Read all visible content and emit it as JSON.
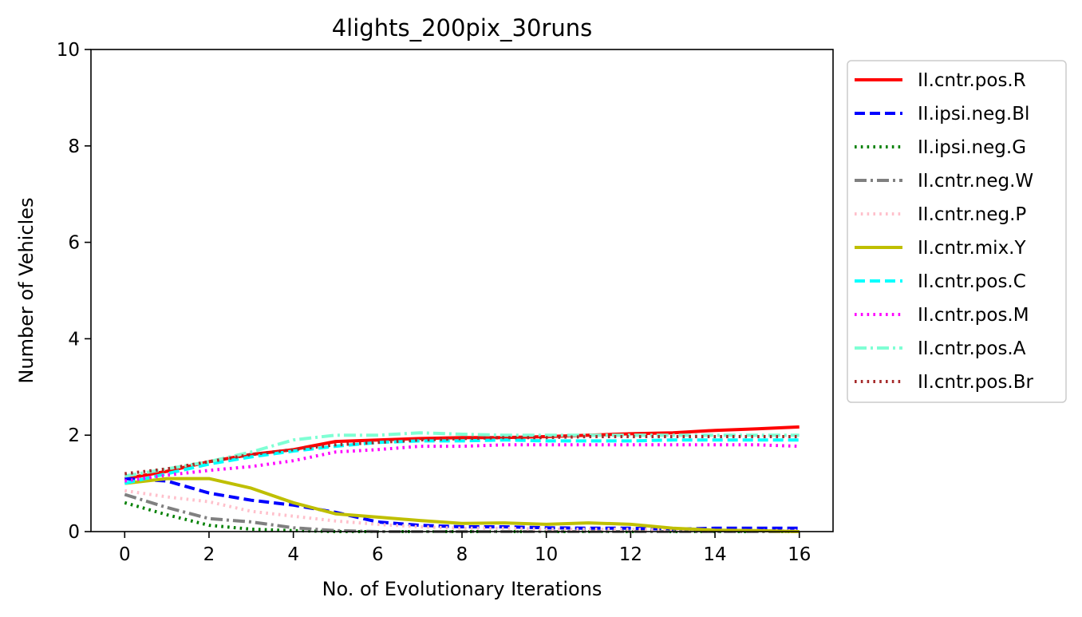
{
  "chart_data": {
    "type": "line",
    "title": "4lights_200pix_30runs",
    "xlabel": "No. of Evolutionary Iterations",
    "ylabel": "Number of Vehicles",
    "xlim": [
      -0.8,
      16.8
    ],
    "ylim": [
      0,
      10
    ],
    "xticks": [
      "0",
      "2",
      "4",
      "6",
      "8",
      "10",
      "12",
      "14",
      "16"
    ],
    "yticks": [
      "0",
      "2",
      "4",
      "6",
      "8",
      "10"
    ],
    "grid": false,
    "legend_position": "outside-right-top",
    "x": [
      0,
      1,
      2,
      3,
      4,
      5,
      6,
      7,
      8,
      9,
      10,
      11,
      12,
      13,
      14,
      15,
      16
    ],
    "series": [
      {
        "name": "II.cntr.pos.R",
        "color": "#ff0000",
        "style": "solid",
        "values": [
          1.1,
          1.25,
          1.45,
          1.6,
          1.7,
          1.87,
          1.9,
          1.93,
          1.95,
          1.95,
          1.97,
          2.0,
          2.03,
          2.05,
          2.1,
          2.13,
          2.17
        ]
      },
      {
        "name": "II.ipsi.neg.Bl",
        "color": "#0000ff",
        "style": "dashed",
        "values": [
          1.1,
          1.05,
          0.8,
          0.65,
          0.55,
          0.4,
          0.2,
          0.13,
          0.1,
          0.1,
          0.08,
          0.07,
          0.07,
          0.05,
          0.07,
          0.07,
          0.07
        ]
      },
      {
        "name": "II.ipsi.neg.G",
        "color": "#008000",
        "style": "dotted",
        "values": [
          0.6,
          0.35,
          0.13,
          0.05,
          0.02,
          0.0,
          0.0,
          0.0,
          0.0,
          0.0,
          0.0,
          0.0,
          0.0,
          0.0,
          0.0,
          0.0,
          0.0
        ]
      },
      {
        "name": "II.cntr.neg.W",
        "color": "#808080",
        "style": "dashdot",
        "values": [
          0.77,
          0.5,
          0.27,
          0.2,
          0.08,
          0.02,
          0.0,
          0.0,
          0.0,
          0.0,
          0.0,
          0.0,
          0.0,
          0.0,
          0.0,
          0.0,
          0.0
        ]
      },
      {
        "name": "II.cntr.neg.P",
        "color": "#ffc0cb",
        "style": "dotted",
        "values": [
          0.85,
          0.72,
          0.62,
          0.42,
          0.32,
          0.22,
          0.15,
          0.1,
          0.07,
          0.07,
          0.05,
          0.05,
          0.05,
          0.03,
          0.02,
          0.02,
          0.02
        ]
      },
      {
        "name": "II.cntr.mix.Y",
        "color": "#bfbf00",
        "style": "solid",
        "values": [
          1.0,
          1.1,
          1.1,
          0.9,
          0.6,
          0.37,
          0.3,
          0.23,
          0.17,
          0.18,
          0.15,
          0.18,
          0.15,
          0.07,
          0.03,
          0.02,
          0.0
        ]
      },
      {
        "name": "II.cntr.pos.C",
        "color": "#00ffff",
        "style": "dashed",
        "values": [
          1.0,
          1.2,
          1.4,
          1.55,
          1.67,
          1.77,
          1.85,
          1.88,
          1.88,
          1.9,
          1.88,
          1.88,
          1.88,
          1.9,
          1.9,
          1.9,
          1.9
        ]
      },
      {
        "name": "II.cntr.pos.M",
        "color": "#ff00ff",
        "style": "dotted",
        "values": [
          1.05,
          1.17,
          1.27,
          1.35,
          1.47,
          1.65,
          1.7,
          1.77,
          1.77,
          1.8,
          1.8,
          1.8,
          1.8,
          1.8,
          1.8,
          1.8,
          1.77
        ]
      },
      {
        "name": "II.cntr.pos.A",
        "color": "#7fffd4",
        "style": "dashdot",
        "values": [
          1.15,
          1.3,
          1.45,
          1.65,
          1.9,
          2.0,
          2.0,
          2.05,
          2.02,
          2.0,
          2.0,
          2.0,
          2.0,
          2.0,
          2.0,
          2.0,
          2.0
        ]
      },
      {
        "name": "II.cntr.pos.Br",
        "color": "#a52a2a",
        "style": "dotted",
        "values": [
          1.2,
          1.3,
          1.45,
          1.6,
          1.7,
          1.8,
          1.85,
          1.9,
          1.93,
          1.95,
          1.95,
          1.97,
          1.97,
          1.97,
          1.97,
          1.97,
          1.97
        ]
      }
    ]
  }
}
